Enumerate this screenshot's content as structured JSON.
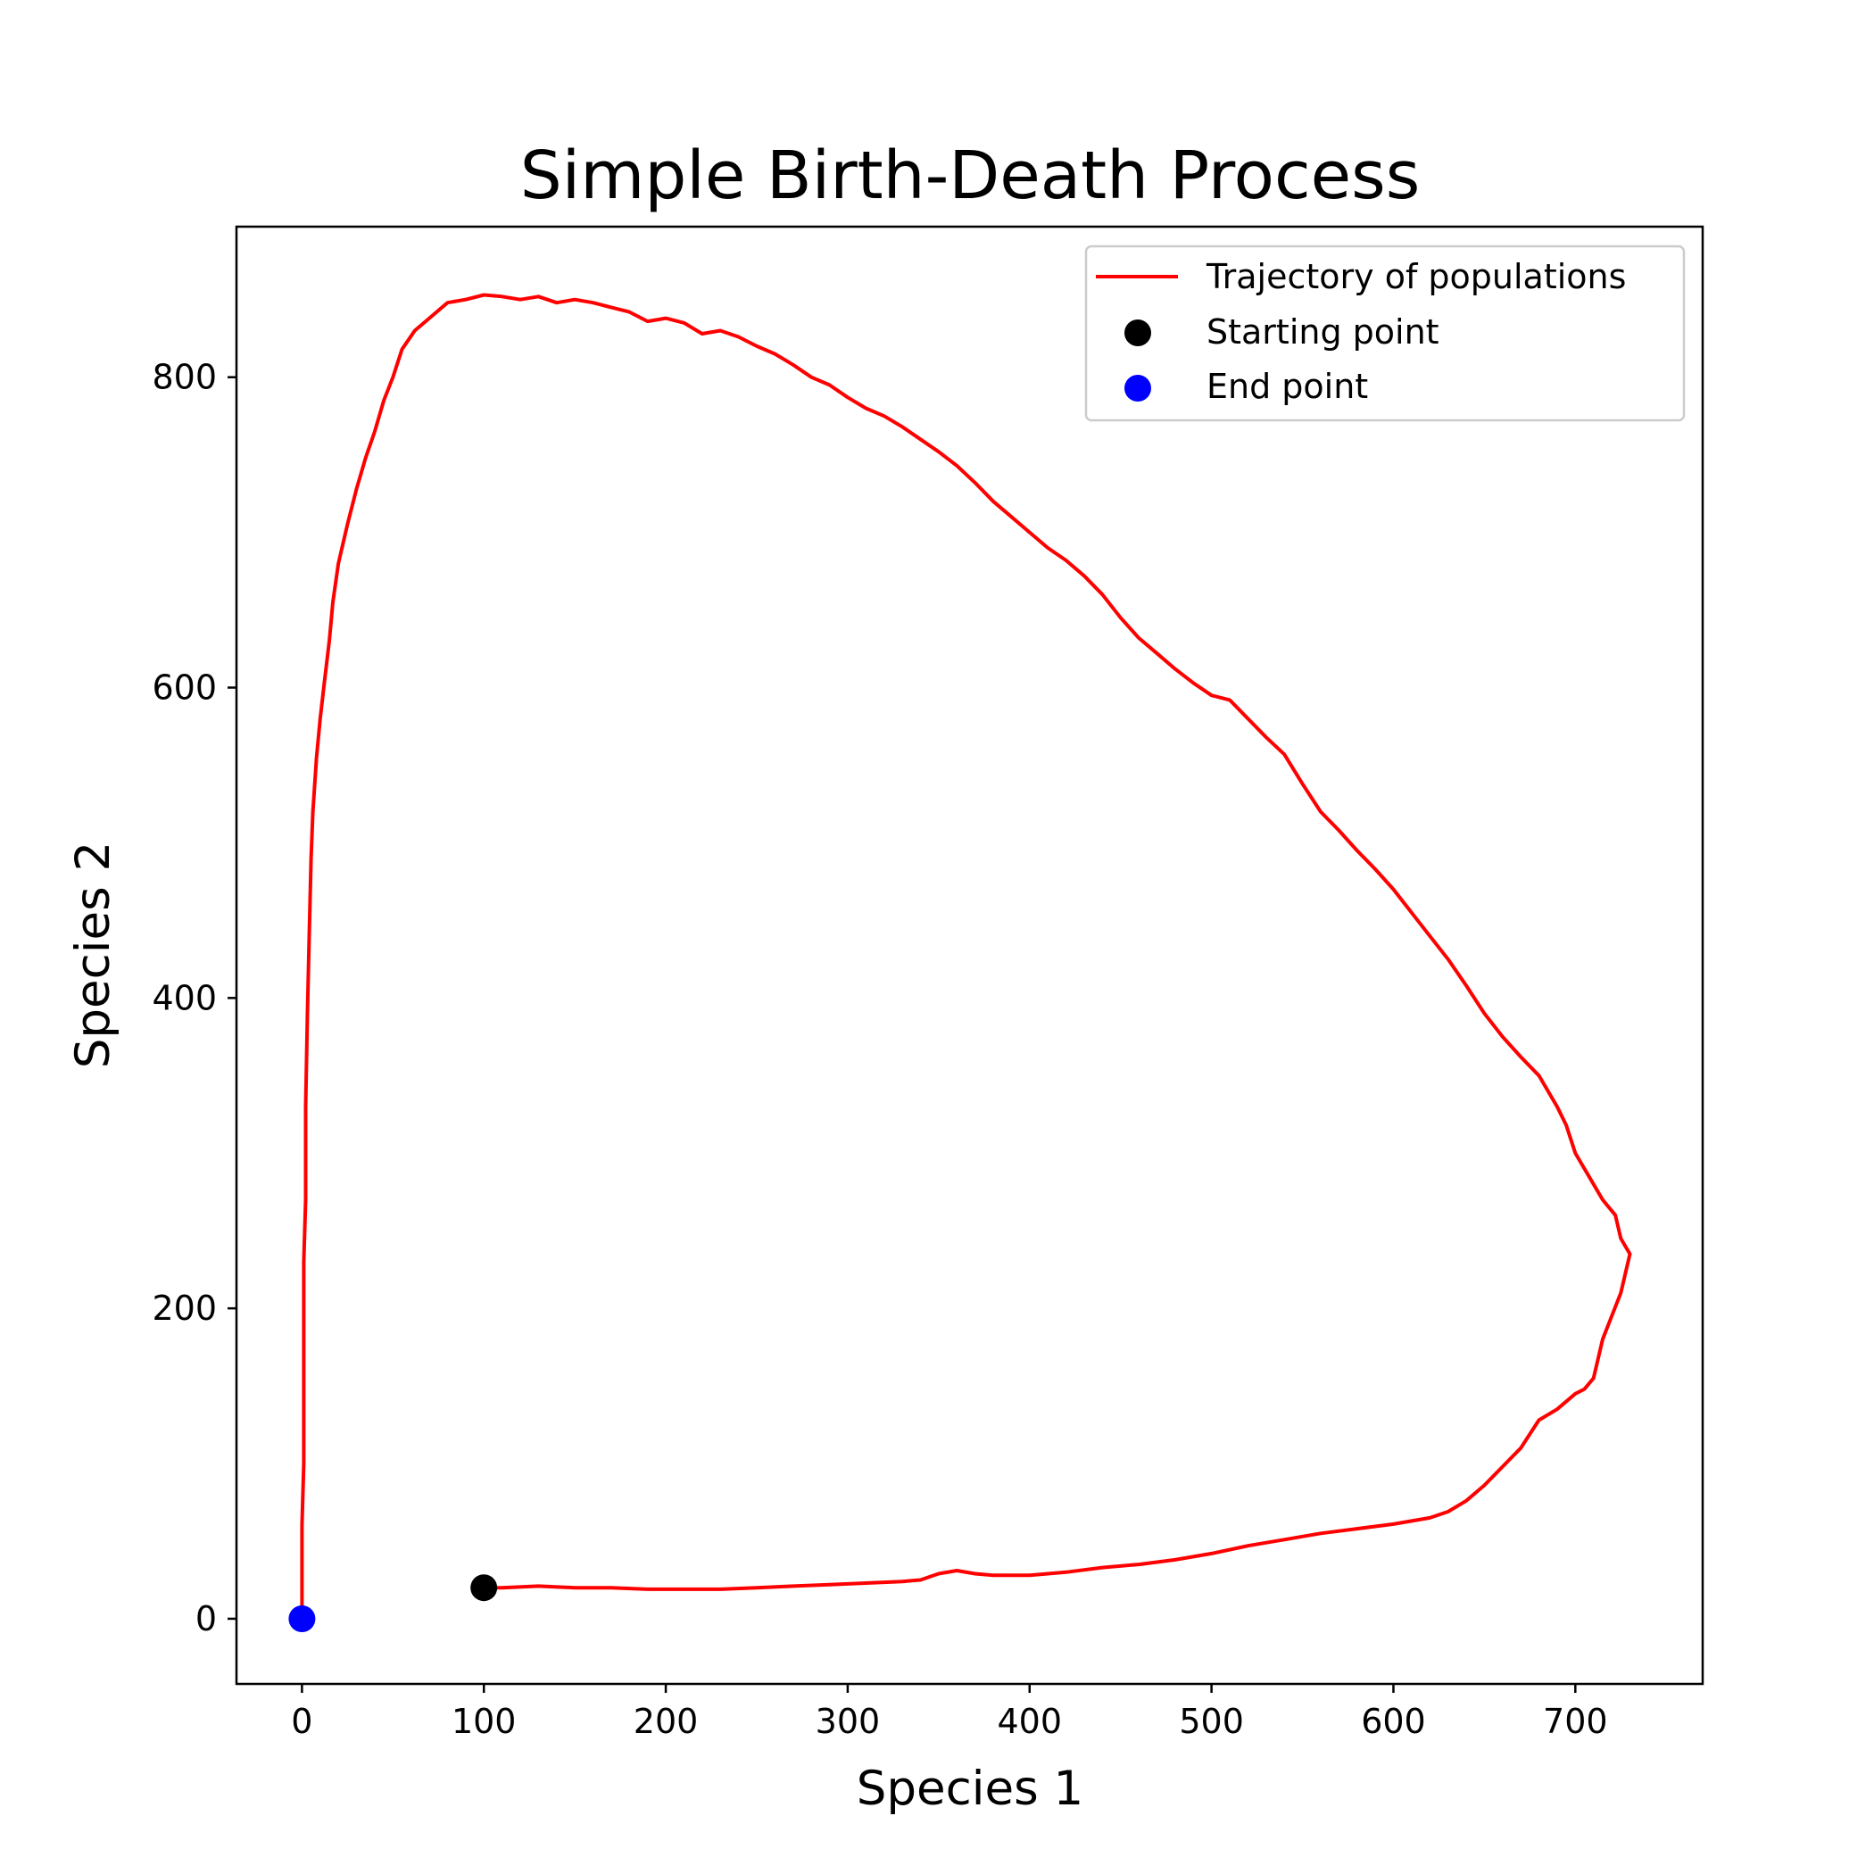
{
  "chart_data": {
    "type": "line",
    "title": "Simple Birth-Death Process",
    "xlabel": "Species 1",
    "ylabel": "Species 2",
    "xlim": [
      -36,
      770
    ],
    "ylim": [
      -42,
      897
    ],
    "xticks": [
      0,
      100,
      200,
      300,
      400,
      500,
      600,
      700
    ],
    "yticks": [
      0,
      200,
      400,
      600,
      800
    ],
    "grid": false,
    "legend_position": "upper right",
    "series": [
      {
        "name": "Trajectory of populations",
        "kind": "line",
        "color": "#ff0000",
        "x": [
          100,
          110,
          130,
          150,
          170,
          190,
          210,
          230,
          250,
          270,
          290,
          310,
          330,
          340,
          350,
          360,
          370,
          380,
          400,
          420,
          440,
          460,
          480,
          500,
          520,
          540,
          560,
          580,
          600,
          620,
          630,
          640,
          650,
          660,
          670,
          680,
          690,
          700,
          705,
          710,
          712,
          715,
          720,
          725,
          728,
          730,
          725,
          722,
          715,
          710,
          705,
          700,
          695,
          690,
          680,
          670,
          660,
          650,
          640,
          630,
          620,
          610,
          600,
          590,
          580,
          570,
          560,
          550,
          540,
          530,
          520,
          510,
          500,
          490,
          480,
          470,
          460,
          450,
          440,
          430,
          420,
          410,
          400,
          390,
          380,
          370,
          360,
          350,
          340,
          330,
          320,
          310,
          300,
          290,
          280,
          270,
          260,
          250,
          240,
          230,
          220,
          210,
          200,
          190,
          180,
          170,
          160,
          150,
          140,
          130,
          120,
          110,
          100,
          90,
          80,
          70,
          62,
          55,
          50,
          45,
          40,
          35,
          30,
          25,
          20,
          17,
          15,
          12,
          10,
          8,
          6,
          5,
          4,
          3,
          2,
          2,
          1,
          1,
          1,
          1,
          0,
          0,
          0,
          0
        ],
        "y": [
          20,
          20,
          21,
          20,
          20,
          19,
          19,
          19,
          20,
          21,
          22,
          23,
          24,
          25,
          29,
          31,
          29,
          28,
          28,
          30,
          33,
          35,
          38,
          42,
          47,
          51,
          55,
          58,
          61,
          65,
          69,
          76,
          86,
          98,
          110,
          128,
          135,
          145,
          148,
          155,
          165,
          180,
          195,
          210,
          225,
          235,
          245,
          260,
          270,
          280,
          290,
          300,
          318,
          330,
          350,
          362,
          375,
          390,
          408,
          425,
          440,
          455,
          470,
          483,
          495,
          508,
          520,
          538,
          557,
          568,
          580,
          592,
          595,
          603,
          612,
          622,
          632,
          645,
          660,
          672,
          682,
          690,
          700,
          710,
          720,
          732,
          743,
          752,
          760,
          768,
          775,
          780,
          787,
          795,
          800,
          808,
          815,
          820,
          826,
          830,
          828,
          835,
          838,
          836,
          842,
          845,
          848,
          850,
          848,
          852,
          850,
          852,
          853,
          850,
          848,
          838,
          830,
          818,
          800,
          785,
          765,
          748,
          728,
          705,
          680,
          655,
          630,
          600,
          580,
          555,
          520,
          490,
          440,
          390,
          330,
          270,
          230,
          190,
          150,
          100,
          60,
          30,
          10,
          2
        ]
      },
      {
        "name": "Starting point",
        "kind": "point",
        "color": "#000000",
        "x": [
          100
        ],
        "y": [
          20
        ]
      },
      {
        "name": "End point",
        "kind": "point",
        "color": "#0000ff",
        "x": [
          0
        ],
        "y": [
          0
        ]
      }
    ]
  }
}
